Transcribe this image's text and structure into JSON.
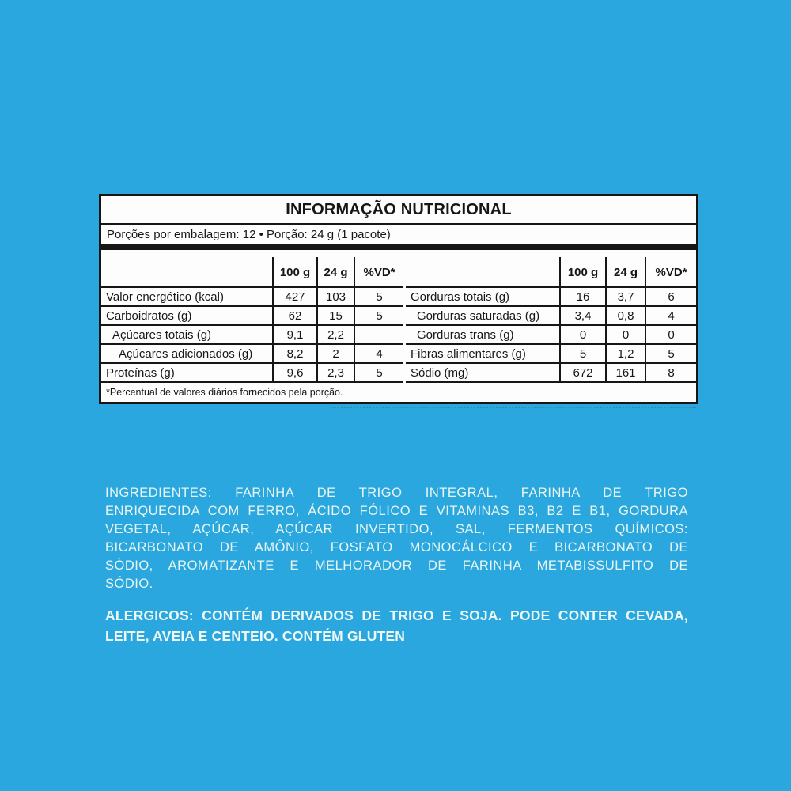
{
  "colors": {
    "background": "#2aa7de",
    "panel_bg": "#fdfdfd",
    "panel_border": "#161616",
    "panel_text": "#161616",
    "light_text": "#e9f6f3"
  },
  "table": {
    "title": "INFORMAÇÃO NUTRICIONAL",
    "serving": "Porções por embalagem: 12 • Porção: 24 g (1 pacote)",
    "columns": [
      "100 g",
      "24 g",
      "%VD*"
    ],
    "left_rows": [
      {
        "label": "Valor energético (kcal)",
        "v100": "427",
        "v24": "103",
        "vd": "5"
      },
      {
        "label": "Carboidratos (g)",
        "v100": "62",
        "v24": "15",
        "vd": "5"
      },
      {
        "label": "Açúcares totais (g)",
        "v100": "9,1",
        "v24": "2,2",
        "vd": ""
      },
      {
        "label": "Açúcares adicionados (g)",
        "v100": "8,2",
        "v24": "2",
        "vd": "4"
      },
      {
        "label": "Proteínas (g)",
        "v100": "9,6",
        "v24": "2,3",
        "vd": "5"
      }
    ],
    "right_rows": [
      {
        "label": "Gorduras totais (g)",
        "v100": "16",
        "v24": "3,7",
        "vd": "6"
      },
      {
        "label": "Gorduras saturadas (g)",
        "v100": "3,4",
        "v24": "0,8",
        "vd": "4"
      },
      {
        "label": "Gorduras trans (g)",
        "v100": "0",
        "v24": "0",
        "vd": "0"
      },
      {
        "label": "Fibras alimentares (g)",
        "v100": "5",
        "v24": "1,2",
        "vd": "5"
      },
      {
        "label": "Sódio (mg)",
        "v100": "672",
        "v24": "161",
        "vd": "8"
      }
    ],
    "footnote": "*Percentual de valores diários fornecidos pela porção."
  },
  "ingredients_lines": [
    "INGREDIENTES: FARINHA DE TRIGO INTEGRAL, FARINHA DE TRIGO",
    "ENRIQUECIDA COM FERRO, ÁCIDO FÓLICO E VITAMINAS B3, B2 E B1, GORDURA",
    "VEGETAL, AÇÚCAR, AÇÚCAR INVERTIDO, SAL, FERMENTOS QUÍMICOS:",
    "BICARBONATO DE AMÔNIO, FOSFATO MONOCÁLCICO E BICARBONATO DE",
    "SÓDIO, AROMATIZANTE E MELHORADOR DE FARINHA METABISSULFITO DE",
    "SÓDIO."
  ],
  "allergen_lines": [
    "ALERGICOS: CONTÉM DERIVADOS DE TRIGO E SOJA. PODE CONTER CEVADA,",
    "LEITE, AVEIA E CENTEIO. CONTÉM GLUTEN"
  ]
}
